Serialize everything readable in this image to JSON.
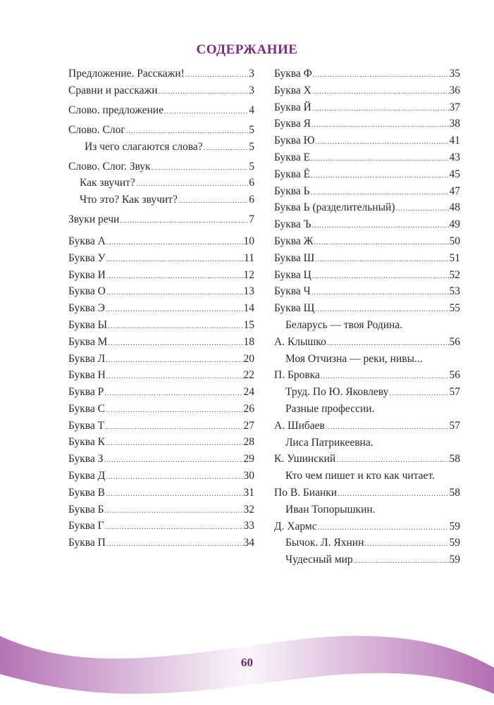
{
  "title": "СОДЕРЖАНИЕ",
  "page_number": "60",
  "colors": {
    "accent": "#7b2b80",
    "ribbon": "#b574b5"
  },
  "left_column": [
    {
      "entries": [
        {
          "text": "Предложение. Расскажи!",
          "page": "3",
          "level": 0
        },
        {
          "text": "Сравни и расскажи",
          "page": "3",
          "level": 0
        }
      ]
    },
    {
      "entries": [
        {
          "text": "Слово. предложение",
          "page": "4",
          "level": 0
        }
      ]
    },
    {
      "entries": [
        {
          "text": "Слово. Слог",
          "page": "5",
          "level": 0
        },
        {
          "text": "Из чего слагаются слова?",
          "page": "5",
          "level": 2
        }
      ]
    },
    {
      "entries": [
        {
          "text": "Слово. Слог. Звук",
          "page": "5",
          "level": 0
        },
        {
          "text": "Как звучит?",
          "page": "6",
          "level": 1
        },
        {
          "text": "Что это? Как звучит?",
          "page": "6",
          "level": 1
        }
      ]
    },
    {
      "big": true,
      "entries": [
        {
          "text": "Звуки речи",
          "page": "7",
          "level": 0
        }
      ]
    },
    {
      "entries": [
        {
          "text": "Буква А",
          "page": "10",
          "level": 0
        },
        {
          "text": "Буква У",
          "page": "11",
          "level": 0
        },
        {
          "text": "Буква И",
          "page": "12",
          "level": 0
        },
        {
          "text": "Буква О",
          "page": "13",
          "level": 0
        },
        {
          "text": "Буква Э",
          "page": "14",
          "level": 0
        },
        {
          "text": "Буква Ы",
          "page": "15",
          "level": 0
        },
        {
          "text": "Буква М",
          "page": "18",
          "level": 0
        },
        {
          "text": "Буква Л",
          "page": "20",
          "level": 0
        },
        {
          "text": "Буква Н",
          "page": "22",
          "level": 0
        },
        {
          "text": "Буква Р",
          "page": "24",
          "level": 0
        },
        {
          "text": "Буква С",
          "page": "26",
          "level": 0
        },
        {
          "text": "Буква Т",
          "page": "27",
          "level": 0
        },
        {
          "text": "Буква К",
          "page": "28",
          "level": 0
        },
        {
          "text": "Буква З",
          "page": "29",
          "level": 0
        },
        {
          "text": "Буква Д",
          "page": "30",
          "level": 0
        },
        {
          "text": "Буква В",
          "page": "31",
          "level": 0
        },
        {
          "text": "Буква Б",
          "page": "32",
          "level": 0
        },
        {
          "text": "Буква Г",
          "page": "33",
          "level": 0
        },
        {
          "text": "Буква П",
          "page": "34",
          "level": 0
        }
      ]
    }
  ],
  "right_column": [
    {
      "text": "Буква Ф",
      "page": "35"
    },
    {
      "text": "Буква Х",
      "page": "36"
    },
    {
      "text": "Буква Й",
      "page": "37"
    },
    {
      "text": "Буква Я",
      "page": "38"
    },
    {
      "text": "Буква Ю",
      "page": "41"
    },
    {
      "text": "Буква Е",
      "page": "43"
    },
    {
      "text": "Буква Ё",
      "page": "45"
    },
    {
      "text": "Буква Ь",
      "page": "47"
    },
    {
      "text": "Буква Ь (разделительный)",
      "page": "48"
    },
    {
      "text": "Буква Ъ",
      "page": "49"
    },
    {
      "text": "Буква Ж",
      "page": "50"
    },
    {
      "text": "Буква Ш",
      "page": "51"
    },
    {
      "text": "Буква Ц",
      "page": "52"
    },
    {
      "text": "Буква Ч",
      "page": "53"
    },
    {
      "text": "Буква Щ",
      "page": "55"
    },
    {
      "title": "Беларусь — твоя Родина.",
      "text": "А. Клышко",
      "page": "56"
    },
    {
      "title": "Моя Отчизна — реки, нивы...",
      "text": "П. Бровка",
      "page": "56"
    },
    {
      "text": "Труд. По Ю. Яковлеву",
      "page": "57",
      "indent": true
    },
    {
      "title": "Разные профессии.",
      "text": "А. Шибаев",
      "page": "57"
    },
    {
      "title": "Лиса Патрикеевна.",
      "text": "К. Ушинский",
      "page": "58"
    },
    {
      "title": "Кто чем пишет и кто как читает.",
      "text": "По В. Бианки",
      "page": "58"
    },
    {
      "title": "Иван Топорышкин.",
      "text": "Д. Хармс",
      "page": "59"
    },
    {
      "text": "Бычок. Л. Яхнин",
      "page": "59",
      "indent": true
    },
    {
      "text": "Чудесный мир",
      "page": "59",
      "indent": true
    }
  ]
}
